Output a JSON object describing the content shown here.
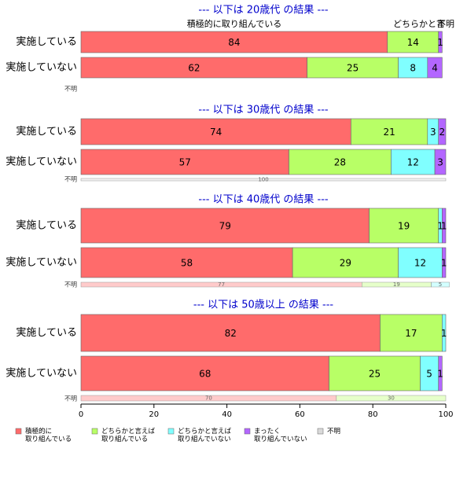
{
  "chart_data": {
    "type": "bar",
    "orientation": "horizontal",
    "stacked": true,
    "xlim": [
      0,
      100
    ],
    "xticks": [
      0,
      20,
      40,
      60,
      80,
      100
    ],
    "grid": false,
    "legend_position": "bottom",
    "colors": {
      "c1": "#ff6b6b",
      "c2": "#b8ff66",
      "c3": "#80ffff",
      "c4": "#b366ff",
      "c5": "#d9d9d9",
      "title": "#0000cc"
    },
    "legend": [
      {
        "key": "c1",
        "label": "積極的に\n取り組んでいる"
      },
      {
        "key": "c2",
        "label": "どちらかと言えば\n取り組んでいる"
      },
      {
        "key": "c3",
        "label": "どちらかと言えば\n取り組んでいない"
      },
      {
        "key": "c4",
        "label": "まったく\n取り組んでいない"
      },
      {
        "key": "c5",
        "label": "不明"
      }
    ],
    "top_annotations": [
      "積極的に取り組んでいる",
      "どちらかと言",
      "不明"
    ],
    "fumei_label": "不明",
    "panels": [
      {
        "title": "--- 以下は 20歳代 の結果 ---",
        "rows": [
          {
            "label": "実施している",
            "values": [
              84,
              14,
              0,
              1,
              0
            ],
            "value_labels": [
              "84",
              "14",
              "",
              "1",
              ""
            ]
          },
          {
            "label": "実施していない",
            "values": [
              62,
              25,
              8,
              4,
              0
            ],
            "value_labels": [
              "62",
              "25",
              "8",
              "4",
              ""
            ]
          }
        ],
        "fumei": {
          "values": [],
          "value_labels": []
        }
      },
      {
        "title": "--- 以下は 30歳代 の結果 ---",
        "rows": [
          {
            "label": "実施している",
            "values": [
              74,
              21,
              3,
              2,
              0
            ],
            "value_labels": [
              "74",
              "21",
              "3",
              "2",
              ""
            ]
          },
          {
            "label": "実施していない",
            "values": [
              57,
              28,
              12,
              3,
              0
            ],
            "value_labels": [
              "57",
              "28",
              "12",
              "3",
              ""
            ]
          }
        ],
        "fumei": {
          "values": [
            0,
            0,
            0,
            0,
            100
          ],
          "value_labels": [
            "",
            "",
            "",
            "",
            "100"
          ]
        }
      },
      {
        "title": "--- 以下は 40歳代 の結果 ---",
        "rows": [
          {
            "label": "実施している",
            "values": [
              79,
              19,
              1,
              1,
              0
            ],
            "value_labels": [
              "79",
              "19",
              "1",
              "1",
              ""
            ]
          },
          {
            "label": "実施していない",
            "values": [
              58,
              29,
              12,
              1,
              0
            ],
            "value_labels": [
              "58",
              "29",
              "12",
              "1",
              ""
            ]
          }
        ],
        "fumei": {
          "values": [
            77,
            19,
            5,
            0,
            0
          ],
          "value_labels": [
            "77",
            "19",
            "5",
            "",
            ""
          ]
        }
      },
      {
        "title": "--- 以下は 50歳以上 の結果 ---",
        "rows": [
          {
            "label": "実施している",
            "values": [
              82,
              17,
              1,
              0,
              0
            ],
            "value_labels": [
              "82",
              "17",
              "1",
              "",
              ""
            ]
          },
          {
            "label": "実施していない",
            "values": [
              68,
              25,
              5,
              1,
              0
            ],
            "value_labels": [
              "68",
              "25",
              "5",
              "1",
              ""
            ]
          }
        ],
        "fumei": {
          "values": [
            70,
            30,
            0,
            0,
            0
          ],
          "value_labels": [
            "70",
            "30",
            "",
            "",
            ""
          ]
        }
      }
    ]
  }
}
